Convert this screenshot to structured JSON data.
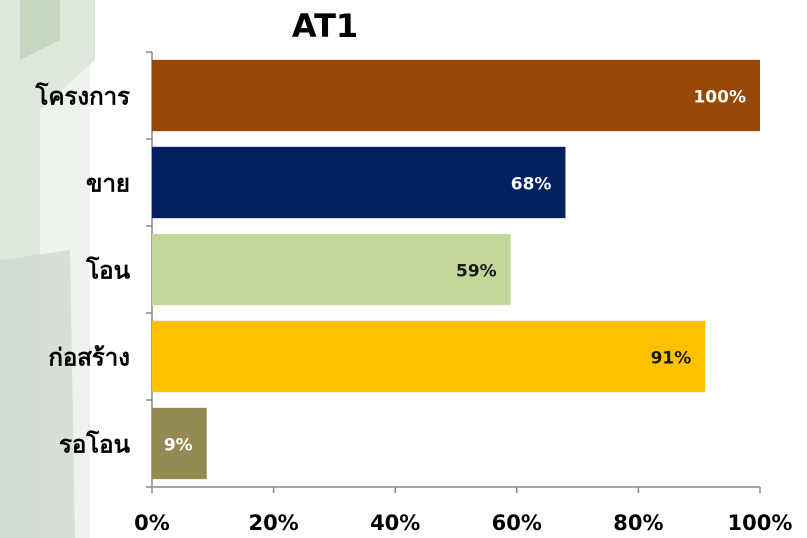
{
  "chart_data": {
    "type": "bar",
    "orientation": "horizontal",
    "title": "AT1",
    "categories": [
      "โครงการ",
      "ขาย",
      "โอน",
      "ก่อสร้าง",
      "รอโอน"
    ],
    "values": [
      100,
      68,
      59,
      91,
      9
    ],
    "value_labels": [
      "100%",
      "68%",
      "59%",
      "91%",
      "9%"
    ],
    "colors": [
      "#974706",
      "#002060",
      "#c3d69b",
      "#ffc000",
      "#948a54"
    ],
    "xlim": [
      0,
      100
    ],
    "xticks": [
      {
        "value": 0,
        "label": "0%"
      },
      {
        "value": 20,
        "label": "20%"
      },
      {
        "value": 40,
        "label": "40%"
      },
      {
        "value": 60,
        "label": "60%"
      },
      {
        "value": 80,
        "label": "80%"
      },
      {
        "value": 100,
        "label": "100%"
      }
    ],
    "grid": false
  }
}
